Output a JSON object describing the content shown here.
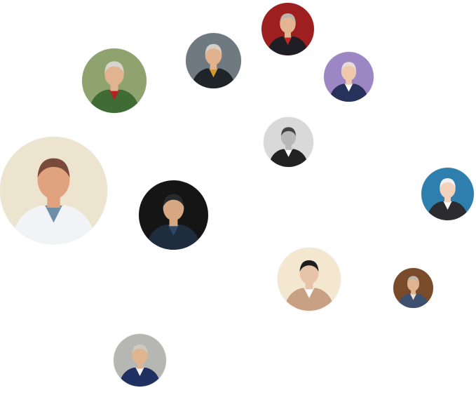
{
  "gallery": {
    "portraits": [
      {
        "id": "portrait-1",
        "icon": "portrait-military-uniform",
        "palette": {
          "bg": "#8fa36f",
          "coat": "#3f6b34",
          "skin": "#e2b38f",
          "hair": "#d9d4cc",
          "accent": "#b22222"
        }
      },
      {
        "id": "portrait-2",
        "icon": "portrait-suit-grey-bg",
        "palette": {
          "bg": "#6f7a80",
          "coat": "#1f2428",
          "skin": "#e0b28e",
          "hair": "#d4d0c9",
          "accent": "#d39a2a"
        }
      },
      {
        "id": "portrait-3",
        "icon": "portrait-red-backdrop",
        "palette": {
          "bg": "#9e1f1f",
          "coat": "#1e1e24",
          "skin": "#e3b592",
          "hair": "#b9b3aa",
          "accent": "#c02828"
        }
      },
      {
        "id": "portrait-4",
        "icon": "portrait-purple-bg",
        "palette": {
          "bg": "#9c86c4",
          "coat": "#27325a",
          "skin": "#efc9ac",
          "hair": "#e2ddd6",
          "accent": "#ffffff"
        }
      },
      {
        "id": "portrait-5",
        "icon": "portrait-black-white",
        "palette": {
          "bg": "#d9d9d9",
          "coat": "#222222",
          "skin": "#b8b8b8",
          "hair": "#444444",
          "accent": "#ffffff"
        }
      },
      {
        "id": "portrait-6",
        "icon": "portrait-chalkboard",
        "palette": {
          "bg": "#ece4cf",
          "coat": "#f1f3f6",
          "skin": "#e0a27f",
          "hair": "#7a4a3a",
          "accent": "#6e8ea8"
        }
      },
      {
        "id": "portrait-7",
        "icon": "portrait-dark-bg",
        "palette": {
          "bg": "#151515",
          "coat": "#1e2c3e",
          "skin": "#d7a682",
          "hair": "#2a2a2a",
          "accent": "#2e4766"
        }
      },
      {
        "id": "portrait-8",
        "icon": "portrait-glasses-blue-bg",
        "palette": {
          "bg": "#2f7fae",
          "coat": "#2c2c30",
          "skin": "#f2d2bd",
          "hair": "#f1f1f1",
          "accent": "#ffffff"
        }
      },
      {
        "id": "portrait-9",
        "icon": "portrait-glasses-sepia",
        "palette": {
          "bg": "#f3e7cf",
          "coat": "#c8a083",
          "skin": "#e7c3a8",
          "hair": "#1e1e1e",
          "accent": "#ffffff"
        }
      },
      {
        "id": "portrait-10",
        "icon": "portrait-office-desk",
        "palette": {
          "bg": "#7a4b2a",
          "coat": "#3d5070",
          "skin": "#e0b48e",
          "hair": "#bdb6aa",
          "accent": "#e9e3d2"
        }
      },
      {
        "id": "portrait-11",
        "icon": "portrait-reading",
        "palette": {
          "bg": "#b6b6b3",
          "coat": "#213063",
          "skin": "#e0b48e",
          "hair": "#cfc9c0",
          "accent": "#f2f2f2"
        }
      }
    ]
  }
}
